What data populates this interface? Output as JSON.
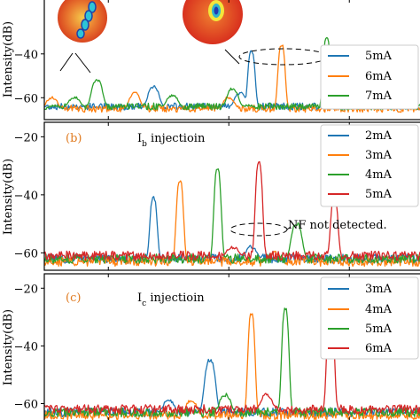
{
  "colors": {
    "blue": "#1f77b4",
    "orange": "#ff7f0e",
    "green": "#2ca02c",
    "red": "#d62728",
    "panel_label": "#e07a1f"
  },
  "chart_data": [
    {
      "type": "line",
      "panel_label": "",
      "title": "",
      "xlabel": "",
      "ylabel": "Intensity(dB)",
      "ylim": [
        -70,
        -15
      ],
      "yticks": [
        -40,
        -60
      ],
      "legend": {
        "placement": "right"
      },
      "series": [
        {
          "name": "5mA",
          "color": "blue",
          "peaks": [
            [
              0.29,
              -55
            ],
            [
              0.52,
              -58
            ],
            [
              0.55,
              -39
            ]
          ],
          "noise": -64
        },
        {
          "name": "6mA",
          "color": "orange",
          "peaks": [
            [
              0.02,
              -60
            ],
            [
              0.24,
              -58
            ],
            [
              0.49,
              -60
            ],
            [
              0.63,
              -36
            ]
          ],
          "noise": -65
        },
        {
          "name": "7mA",
          "color": "green",
          "peaks": [
            [
              0.08,
              -60
            ],
            [
              0.14,
              -52
            ],
            [
              0.34,
              -59
            ],
            [
              0.5,
              -56
            ],
            [
              0.75,
              -33
            ]
          ],
          "noise": -64
        }
      ],
      "annotations": []
    },
    {
      "type": "line",
      "panel_label": "(b)",
      "title": "Ib injectioin",
      "xlabel": "",
      "ylabel": "Intensity(dB)",
      "ylim": [
        -66,
        -15
      ],
      "yticks": [
        -20,
        -40,
        -60
      ],
      "legend": {
        "placement": "top-right"
      },
      "series": [
        {
          "name": "2mA",
          "color": "blue",
          "peaks": [
            [
              0.29,
              -41
            ],
            [
              0.55,
              -58
            ]
          ],
          "noise": -62
        },
        {
          "name": "3mA",
          "color": "orange",
          "peaks": [
            [
              0.36,
              -35
            ],
            [
              0.61,
              -60
            ]
          ],
          "noise": -63
        },
        {
          "name": "4mA",
          "color": "green",
          "peaks": [
            [
              0.46,
              -31
            ],
            [
              0.67,
              -50
            ]
          ],
          "noise": -62
        },
        {
          "name": "5mA",
          "color": "red",
          "peaks": [
            [
              0.57,
              -29
            ],
            [
              0.77,
              -41
            ],
            [
              0.5,
              -58
            ]
          ],
          "noise": -61
        }
      ],
      "annotations": [
        {
          "text": "NF not detected."
        }
      ]
    },
    {
      "type": "line",
      "panel_label": "(c)",
      "title": "Ic injectioin",
      "xlabel": "",
      "ylabel": "Intensity(dB)",
      "ylim": [
        -66,
        -15
      ],
      "yticks": [
        -20,
        -40,
        -60
      ],
      "legend": {
        "placement": "top-right"
      },
      "series": [
        {
          "name": "3mA",
          "color": "blue",
          "peaks": [
            [
              0.44,
              -45
            ],
            [
              0.33,
              -59
            ]
          ],
          "noise": -63
        },
        {
          "name": "4mA",
          "color": "orange",
          "peaks": [
            [
              0.55,
              -29
            ],
            [
              0.39,
              -59
            ]
          ],
          "noise": -64
        },
        {
          "name": "5mA",
          "color": "green",
          "peaks": [
            [
              0.64,
              -27
            ],
            [
              0.48,
              -57
            ]
          ],
          "noise": -63
        },
        {
          "name": "6mA",
          "color": "red",
          "peaks": [
            [
              0.76,
              -24
            ],
            [
              0.59,
              -57
            ]
          ],
          "noise": -62
        }
      ],
      "annotations": []
    }
  ]
}
